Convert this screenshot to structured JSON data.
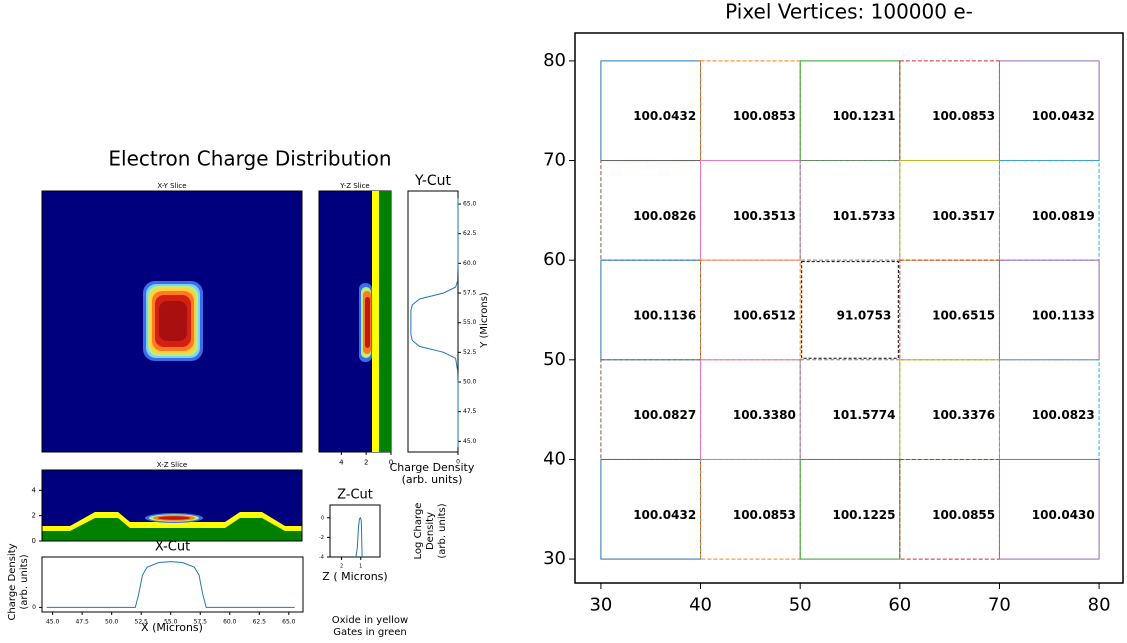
{
  "figure_title": "Electron Charge Distribution",
  "notes": [
    "Oxide in yellow",
    "Gates in green"
  ],
  "chart_data": [
    {
      "type": "image",
      "title": "X-Y Slice"
    },
    {
      "type": "image",
      "title": "Y-Z Slice",
      "xlim": [
        5.8,
        0
      ],
      "xticks": [
        4,
        2,
        0
      ]
    },
    {
      "type": "line",
      "orientation": "vertical",
      "title": "Y-Cut",
      "xlabel": [
        "Charge Density",
        "(arb. units)"
      ],
      "ylabel": "Y (Microns)",
      "color": "#1f77b4",
      "xlim": [
        1.04,
        0
      ],
      "xticks": [
        0
      ],
      "ylim": [
        44.1,
        66.1
      ],
      "yticks": [
        {
          "value": 45,
          "label": "45.0"
        },
        47.5,
        {
          "value": 50,
          "label": "50.0"
        },
        52.5,
        {
          "value": 55,
          "label": "55.0"
        },
        57.5,
        {
          "value": 60,
          "label": "60.0"
        },
        62.5,
        {
          "value": 65,
          "label": "65.0"
        }
      ],
      "y": [
        44.5,
        50,
        51,
        52,
        52.5,
        53,
        53.5,
        54,
        55,
        56,
        56.5,
        57,
        57.5,
        58,
        58.5,
        60,
        65.5
      ],
      "values": [
        0,
        0,
        0.01,
        0.05,
        0.3,
        0.8,
        0.95,
        0.98,
        0.98,
        0.98,
        0.95,
        0.8,
        0.3,
        0.05,
        0.01,
        0,
        0
      ]
    },
    {
      "type": "image",
      "title": "X-Z Slice",
      "ylim": [
        0,
        5.6
      ],
      "yticks": [
        0,
        2,
        4
      ]
    },
    {
      "type": "line",
      "title": "Z-Cut",
      "xlabel": "Z ( Microns)",
      "ylabel": [
        "Log Charge",
        "Density",
        "(arb. units)"
      ],
      "color": "#1f77b4",
      "xlim": [
        2.6,
        0
      ],
      "xticks": [
        2,
        1
      ],
      "ylim": [
        -4,
        1.3
      ],
      "yticks": [
        0,
        -2,
        -4
      ],
      "x": [
        1.25,
        1.18,
        1.12,
        1.07,
        1.02,
        0.97,
        0.93
      ],
      "values": [
        -4,
        -3,
        -1,
        -0.1,
        0,
        -0.3,
        -4
      ]
    },
    {
      "type": "line",
      "title": "X-Cut",
      "xlabel": "X (Microns)",
      "ylabel": [
        "Charge Density",
        "(arb. units)"
      ],
      "color": "#1f77b4",
      "xlim": [
        44.1,
        66.2
      ],
      "ylim": [
        -0.1,
        1.1
      ],
      "yticks": [
        0
      ],
      "xticks": [
        {
          "value": 45,
          "label": "45.0"
        },
        47.5,
        {
          "value": 50,
          "label": "50.0"
        },
        52.5,
        {
          "value": 55,
          "label": "55.0"
        },
        57.5,
        {
          "value": 60,
          "label": "60.0"
        },
        62.5,
        {
          "value": 65,
          "label": "65.0"
        }
      ],
      "x": [
        44.5,
        52,
        52.3,
        52.6,
        53,
        54,
        55,
        56,
        57,
        57.4,
        57.7,
        58,
        65.5
      ],
      "values": [
        0,
        0,
        0.3,
        0.7,
        0.88,
        0.98,
        1,
        0.98,
        0.88,
        0.7,
        0.3,
        0,
        0
      ]
    },
    {
      "type": "grid",
      "title": "Pixel Vertices: 100000 e-",
      "xlim": [
        27.4,
        82.4
      ],
      "ylim": [
        27.6,
        82.8
      ],
      "xticks": [
        30,
        40,
        50,
        60,
        70,
        80
      ],
      "yticks": [
        30,
        40,
        50,
        60,
        70,
        80
      ],
      "x_edges": [
        30,
        40,
        50,
        60,
        70,
        80
      ],
      "y_edges": [
        80,
        70,
        60,
        50,
        40,
        30
      ],
      "cell_colors": [
        "#1f77b4",
        "#ff7f0e",
        "#2ca02c",
        "#d62728",
        "#9467bd",
        "#8c564b",
        "#e377c2",
        "#7f7f7f",
        "#bcbd22",
        "#17becf"
      ],
      "highlight": {
        "row": 2,
        "col": 2,
        "color": "#ff0000"
      },
      "values": [
        [
          100.0432,
          100.0853,
          100.1231,
          100.0853,
          100.0432
        ],
        [
          100.0826,
          100.3513,
          101.5733,
          100.3517,
          100.0819
        ],
        [
          100.1136,
          100.6512,
          91.0753,
          100.6515,
          100.1133
        ],
        [
          100.0827,
          100.338,
          101.5774,
          100.3376,
          100.0823
        ],
        [
          100.0432,
          100.0853,
          100.1225,
          100.0855,
          100.043
        ]
      ],
      "value_labels": [
        [
          "100.0432",
          "100.0853",
          "100.1231",
          "100.0853",
          "100.0432"
        ],
        [
          "100.0826",
          "100.3513",
          "101.5733",
          "100.3517",
          "100.0819"
        ],
        [
          "100.1136",
          "100.6512",
          "91.0753",
          "100.6515",
          "100.1133"
        ],
        [
          "100.0827",
          "100.3380",
          "101.5774",
          "100.3376",
          "100.0823"
        ],
        [
          "100.0432",
          "100.0853",
          "100.1225",
          "100.0855",
          "100.0430"
        ]
      ]
    }
  ]
}
